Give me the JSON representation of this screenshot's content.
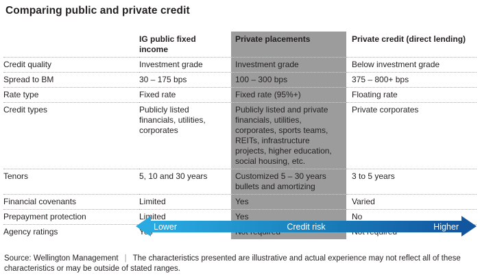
{
  "title": "Comparing public and private credit",
  "colors": {
    "highlight_column_bg": "#9c9c9c",
    "arrow_gradient_start": "#29abe2",
    "arrow_gradient_end": "#1356a0",
    "text": "#231f20"
  },
  "table": {
    "headers": {
      "col2": "IG public fixed income",
      "col3": "Private placements",
      "col4": "Private credit (direct lending)"
    },
    "rows": [
      {
        "label": "Credit quality",
        "cells": [
          "Investment grade",
          "Investment grade",
          "Below investment grade"
        ]
      },
      {
        "label": "Spread to BM",
        "cells": [
          "30 – 175 bps",
          "100 – 300 bps",
          "375 – 800+ bps"
        ]
      },
      {
        "label": "Rate type",
        "cells": [
          "Fixed rate",
          "Fixed rate (95%+)",
          "Floating rate"
        ]
      },
      {
        "label": "Credit types",
        "cells": [
          "Publicly listed financials, utilities, corporates",
          "Publicly listed and private financials, utilities, corporates, sports teams, REITs, infrastructure projects, higher education, social housing, etc.",
          "Private corporates"
        ]
      },
      {
        "label": "Tenors",
        "cells": [
          "5, 10 and 30 years",
          "Customized 5 – 30 years bullets and amortizing",
          "3 to 5 years"
        ]
      },
      {
        "label": "Financial covenants",
        "cells": [
          "Limited",
          "Yes",
          "Varied"
        ]
      },
      {
        "label": "Prepayment protection",
        "cells": [
          "Limited",
          "Yes",
          "No"
        ]
      },
      {
        "label": "Agency ratings",
        "cells": [
          "Yes",
          "Not required",
          "Not required"
        ]
      }
    ]
  },
  "risk_arrow": {
    "left_label": "Lower",
    "center_label": "Credit risk",
    "right_label": "Higher"
  },
  "footer": {
    "source": "Source: Wellington Management",
    "separator": "|",
    "note": "The characteristics presented are illustrative and actual experience may not reflect all of these characteristics or may be outside of stated ranges."
  }
}
